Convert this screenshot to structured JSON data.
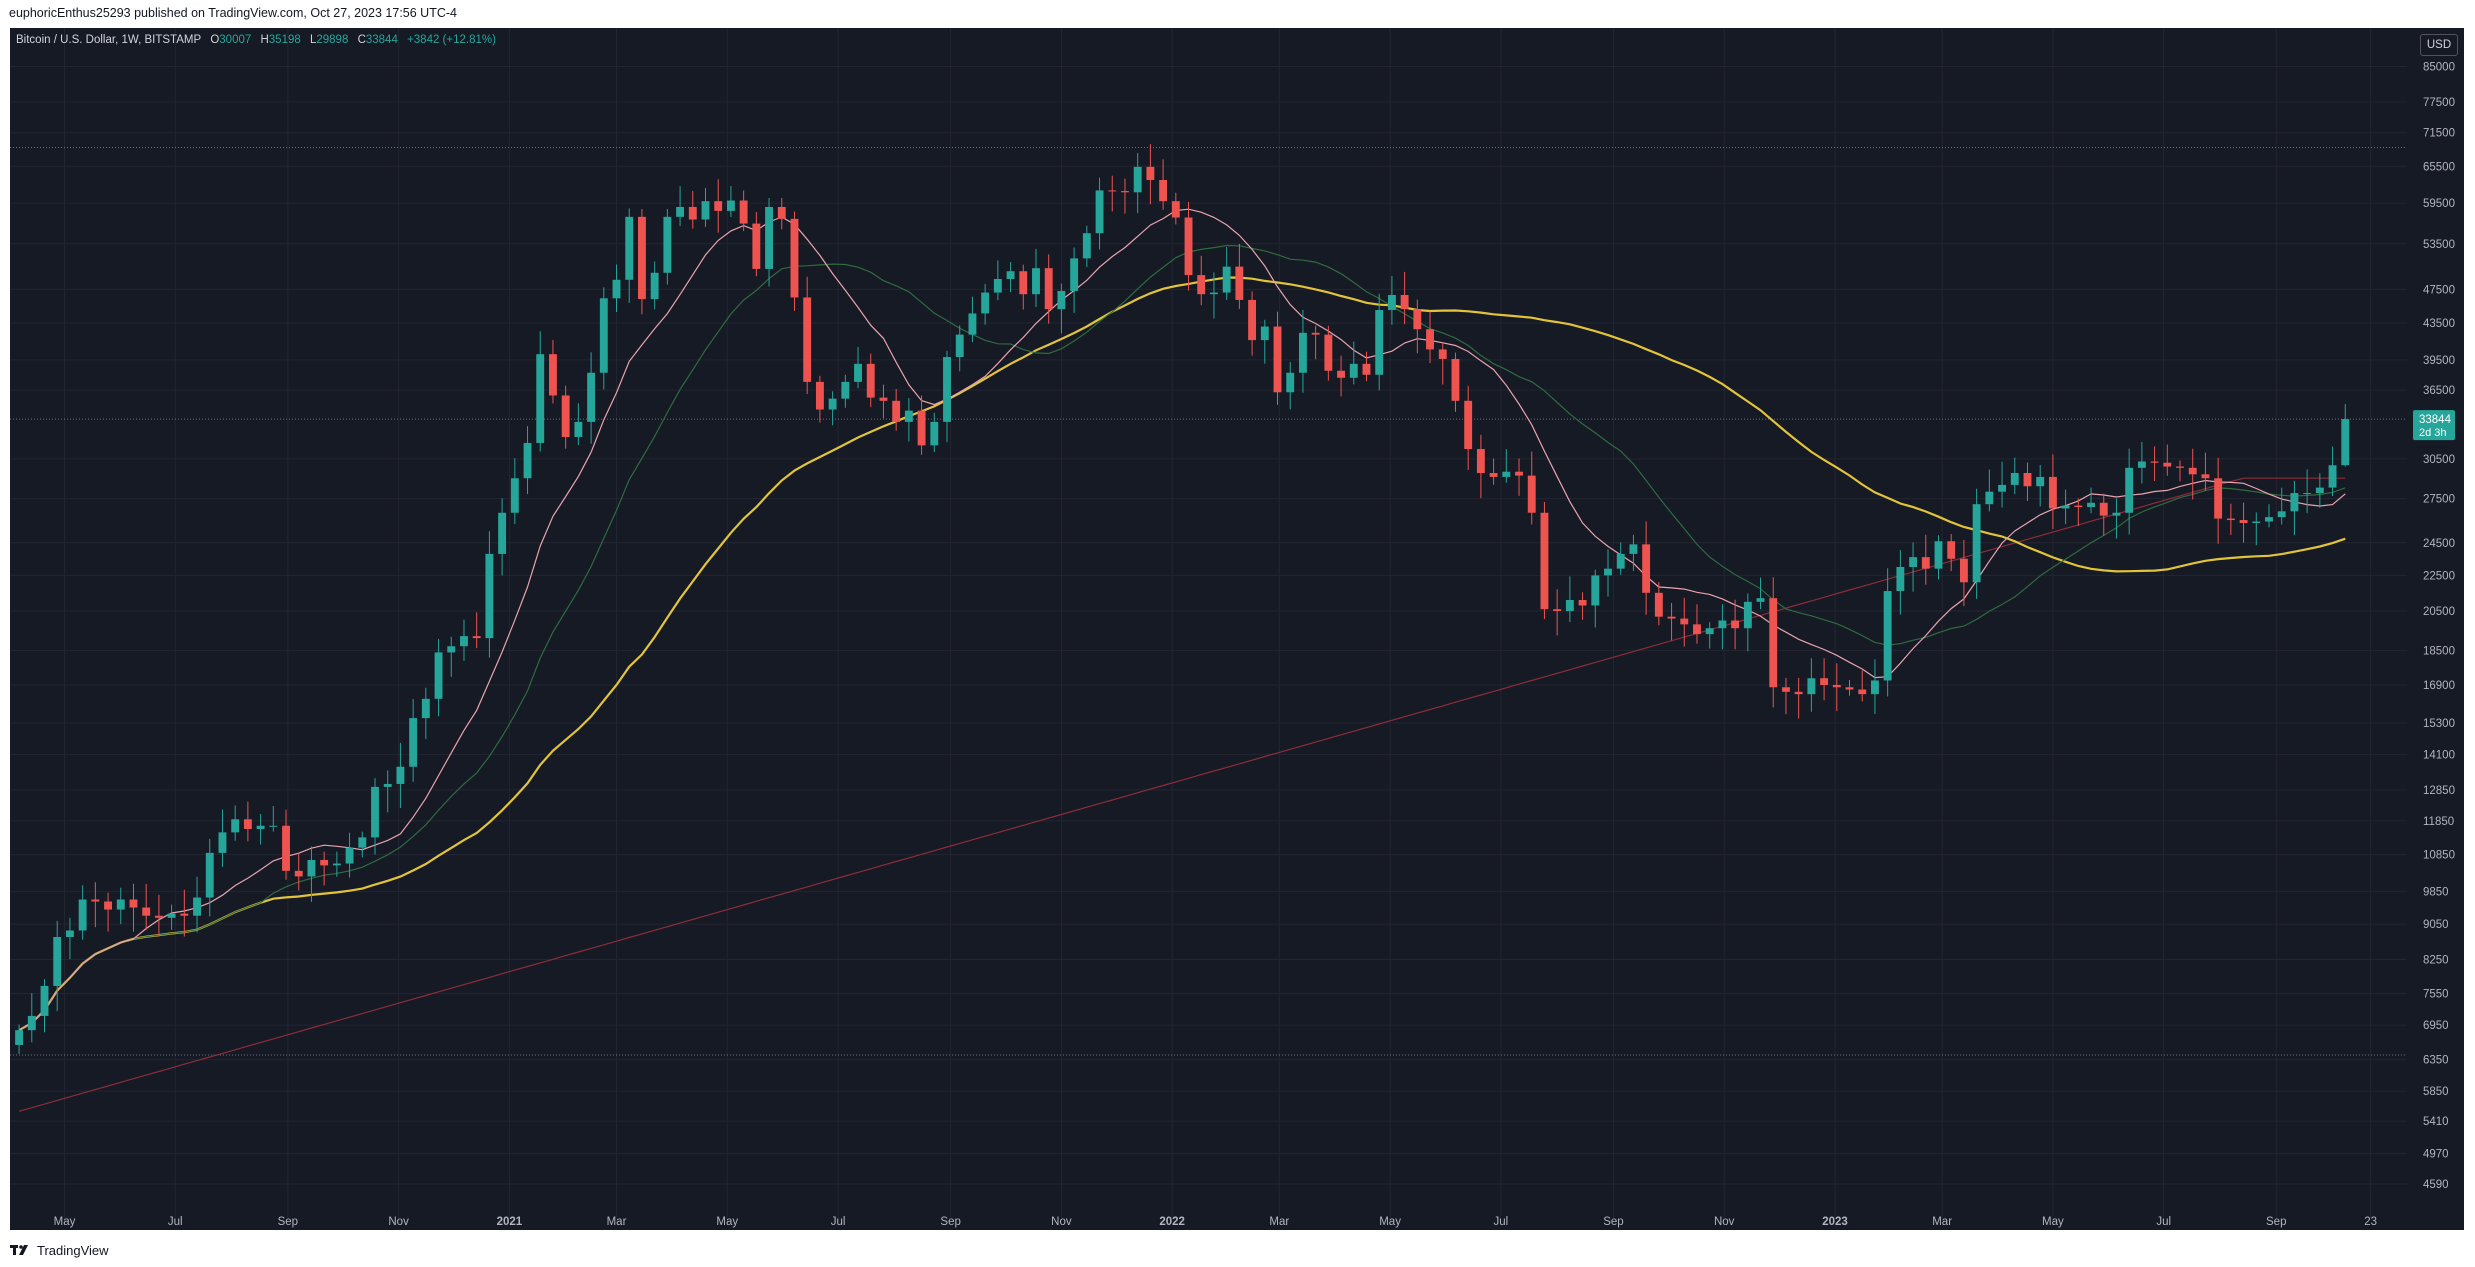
{
  "header": {
    "published_by": "euphoricEnthus25293 published on TradingView.com, Oct 27, 2023 17:56 UTC-4"
  },
  "legend": {
    "symbol": "Bitcoin / U.S. Dollar, 1W, BITSTAMP",
    "open_label": "O",
    "open": "30007",
    "high_label": "H",
    "high": "35198",
    "low_label": "L",
    "low": "29898",
    "close_label": "C",
    "close": "33844",
    "change": "+3842 (+12.81%)"
  },
  "currency_button": "USD",
  "price_badge": {
    "price": "33844",
    "countdown": "2d 3h"
  },
  "footer": {
    "brand": "TradingView"
  },
  "colors": {
    "background": "#161a25",
    "up": "#26a69a",
    "down": "#ef5350",
    "sma_fast": "#e9a3ae",
    "sma_mid": "#2e6b3f",
    "sma_slow": "#e2c43a",
    "sma_long": "#8c2d3a"
  },
  "chart_data": {
    "type": "candlestick",
    "title": "Bitcoin / U.S. Dollar, 1W, BITSTAMP",
    "y_scale": "log",
    "ylim": [
      4200,
      94000
    ],
    "y_ticks": [
      85000,
      77500,
      71500,
      65500,
      59500,
      53500,
      47500,
      43500,
      39500,
      36500,
      33844,
      30500,
      27500,
      24500,
      22500,
      20500,
      18500,
      16900,
      15300,
      14100,
      12850,
      11850,
      10850,
      9850,
      9050,
      8250,
      7550,
      6950,
      6350,
      5850,
      5410,
      4970,
      4590
    ],
    "x_ticks": [
      "May",
      "Jul",
      "Sep",
      "Nov",
      "2021",
      "Mar",
      "May",
      "Jul",
      "Sep",
      "Nov",
      "2022",
      "Mar",
      "May",
      "Jul",
      "Sep",
      "Nov",
      "2023",
      "Mar",
      "May",
      "Jul",
      "Sep",
      "23"
    ],
    "x_tick_dates": [
      "2020-05-01",
      "2020-07-01",
      "2020-09-01",
      "2020-11-01",
      "2021-01-01",
      "2021-03-01",
      "2021-05-01",
      "2021-07-01",
      "2021-09-01",
      "2021-11-01",
      "2022-01-01",
      "2022-03-01",
      "2022-05-01",
      "2022-07-01",
      "2022-09-01",
      "2022-11-01",
      "2023-01-01",
      "2023-03-01",
      "2023-05-01",
      "2023-07-01",
      "2023-09-01",
      "2023-10-23"
    ],
    "x_range": [
      "2020-04-01",
      "2023-11-12"
    ],
    "horizontal_dotted_lines": [
      68800,
      33844,
      6430
    ],
    "weekly_closes": [
      6860,
      7120,
      7700,
      8750,
      8900,
      9650,
      9600,
      9400,
      9650,
      9450,
      9250,
      9200,
      9300,
      9250,
      9700,
      10900,
      11500,
      11900,
      11600,
      11700,
      11700,
      10400,
      10250,
      10700,
      10550,
      10600,
      11050,
      11350,
      12950,
      13050,
      13650,
      15500,
      16300,
      18400,
      18700,
      19200,
      19100,
      23800,
      26500,
      29000,
      31800,
      40100,
      36000,
      32300,
      33600,
      38200,
      46400,
      48700,
      57400,
      46300,
      49600,
      57400,
      58900,
      57000,
      59800,
      58300,
      59900,
      56400,
      50100,
      58900,
      57100,
      46500,
      37300,
      34700,
      35700,
      37300,
      39100,
      35800,
      35500,
      33600,
      34600,
      31600,
      33600,
      39800,
      42200,
      44600,
      47100,
      48800,
      49800,
      46900,
      50200,
      45100,
      47300,
      51500,
      55000,
      61500,
      61400,
      61200,
      65400,
      63200,
      59800,
      57300,
      49300,
      46900,
      47100,
      50400,
      46200,
      41600,
      43100,
      36300,
      38200,
      42400,
      42200,
      38400,
      37700,
      39100,
      38000,
      45000,
      46800,
      45100,
      42800,
      40600,
      39600,
      35500,
      31300,
      29400,
      29100,
      29500,
      29200,
      26500,
      20600,
      20500,
      21100,
      20800,
      22500,
      22900,
      23800,
      24400,
      21500,
      20200,
      20100,
      19800,
      19300,
      19600,
      20000,
      19600,
      21000,
      21200,
      16800,
      16600,
      16500,
      17200,
      16900,
      16800,
      16700,
      16500,
      17100,
      21600,
      23000,
      23600,
      22900,
      24600,
      23500,
      22100,
      27100,
      28000,
      28500,
      29400,
      28400,
      29100,
      26800,
      27000,
      26900,
      27200,
      26300,
      26500,
      29800,
      30300,
      30200,
      29900,
      29800,
      29300,
      29000,
      26100,
      26000,
      25800,
      25900,
      26200,
      26600,
      27900,
      27900,
      28300,
      30000,
      33844
    ],
    "last": {
      "open": 30007,
      "high": 35198,
      "low": 29898,
      "close": 33844,
      "change": 3842,
      "change_pct": 12.81
    },
    "series": [
      {
        "kind": "candles",
        "values_from": "weekly_closes"
      },
      {
        "kind": "sma",
        "period": 10
      },
      {
        "kind": "sma",
        "period": 20
      },
      {
        "kind": "sma",
        "period": 50
      },
      {
        "kind": "sma",
        "period": 200
      }
    ]
  }
}
